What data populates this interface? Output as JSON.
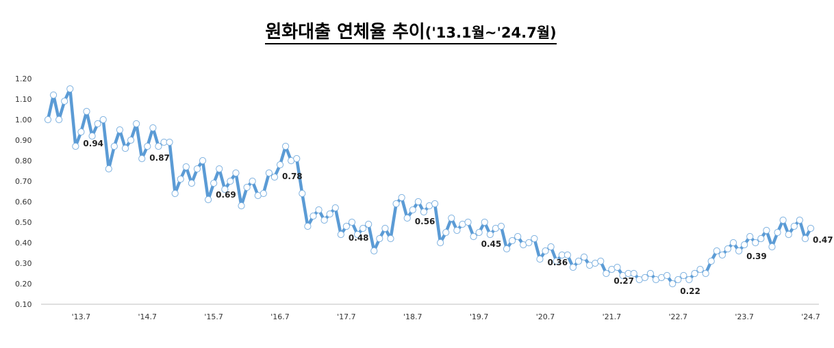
{
  "chart_data": {
    "type": "line",
    "title": "원화대출 연체율 추이",
    "subtitle": "('13.1월~'24.7월)",
    "xlabel": "",
    "ylabel": "",
    "ylim": [
      0.1,
      1.2
    ],
    "yticks": [
      "1.20",
      "1.10",
      "1.00",
      "0.90",
      "0.80",
      "0.70",
      "0.60",
      "0.50",
      "0.40",
      "0.30",
      "0.20",
      "0.10"
    ],
    "xticks": [
      {
        "index": 6,
        "label": "'13.7"
      },
      {
        "index": 18,
        "label": "'14.7"
      },
      {
        "index": 30,
        "label": "'15.7"
      },
      {
        "index": 42,
        "label": "'16.7"
      },
      {
        "index": 54,
        "label": "'17.7"
      },
      {
        "index": 66,
        "label": "'18.7"
      },
      {
        "index": 78,
        "label": "'19.7"
      },
      {
        "index": 90,
        "label": "'20.7"
      },
      {
        "index": 102,
        "label": "'21.7"
      },
      {
        "index": 114,
        "label": "'22.7"
      },
      {
        "index": 126,
        "label": "'23.7"
      },
      {
        "index": 138,
        "label": "'24.7"
      }
    ],
    "grid": false,
    "line_color": "#5b9bd5",
    "marker_fill": "#ffffff",
    "x_start": "2013-01",
    "x_end": "2024-07",
    "series": [
      {
        "values": [
          1.0,
          1.12,
          1.0,
          1.09,
          1.15,
          0.87,
          0.94,
          1.04,
          0.92,
          0.98,
          1.0,
          0.76,
          0.87,
          0.95,
          0.86,
          0.9,
          0.98,
          0.81,
          0.87,
          0.96,
          0.87,
          0.89,
          0.89,
          0.64,
          0.71,
          0.77,
          0.69,
          0.76,
          0.8,
          0.61,
          0.69,
          0.76,
          0.66,
          0.7,
          0.74,
          0.58,
          0.67,
          0.7,
          0.63,
          0.64,
          0.74,
          0.72,
          0.78,
          0.87,
          0.8,
          0.81,
          0.64,
          0.48,
          0.53,
          0.56,
          0.51,
          0.54,
          0.57,
          0.44,
          0.48,
          0.5,
          0.44,
          0.47,
          0.49,
          0.36,
          0.42,
          0.47,
          0.42,
          0.59,
          0.62,
          0.52,
          0.56,
          0.6,
          0.55,
          0.58,
          0.59,
          0.4,
          0.45,
          0.52,
          0.46,
          0.49,
          0.5,
          0.43,
          0.45,
          0.5,
          0.44,
          0.47,
          0.48,
          0.37,
          0.41,
          0.43,
          0.39,
          0.4,
          0.42,
          0.32,
          0.36,
          0.38,
          0.31,
          0.34,
          0.34,
          0.28,
          0.31,
          0.33,
          0.29,
          0.3,
          0.31,
          0.25,
          0.27,
          0.28,
          0.24,
          0.25,
          0.25,
          0.22,
          0.23,
          0.25,
          0.22,
          0.23,
          0.24,
          0.2,
          0.22,
          0.24,
          0.22,
          0.25,
          0.27,
          0.25,
          0.31,
          0.36,
          0.34,
          0.37,
          0.4,
          0.36,
          0.39,
          0.43,
          0.4,
          0.42,
          0.46,
          0.38,
          0.45,
          0.51,
          0.44,
          0.48,
          0.51,
          0.42,
          0.47
        ]
      }
    ],
    "annotations": [
      {
        "index": 6,
        "label": "0.94"
      },
      {
        "index": 18,
        "label": "0.87"
      },
      {
        "index": 30,
        "label": "0.69"
      },
      {
        "index": 42,
        "label": "0.78"
      },
      {
        "index": 54,
        "label": "0.48"
      },
      {
        "index": 66,
        "label": "0.56"
      },
      {
        "index": 78,
        "label": "0.45"
      },
      {
        "index": 90,
        "label": "0.36"
      },
      {
        "index": 102,
        "label": "0.27"
      },
      {
        "index": 114,
        "label": "0.22"
      },
      {
        "index": 126,
        "label": "0.39"
      },
      {
        "index": 138,
        "label": "0.47"
      }
    ]
  }
}
